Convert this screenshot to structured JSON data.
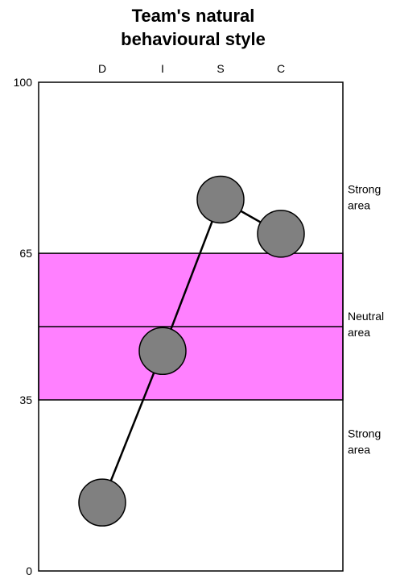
{
  "chart_data": {
    "type": "line",
    "title_lines": [
      "Team's natural",
      "behavioural style"
    ],
    "categories": [
      "D",
      "I",
      "S",
      "C"
    ],
    "values": [
      14,
      45,
      76,
      69
    ],
    "ylim": [
      0,
      100
    ],
    "y_ticks": [
      {
        "value": 100,
        "label": "100"
      },
      {
        "value": 65,
        "label": "65"
      },
      {
        "value": 35,
        "label": "35"
      },
      {
        "value": 0,
        "label": "0"
      }
    ],
    "bands": [
      {
        "from": 35,
        "to": 65,
        "color": "#ff80ff"
      }
    ],
    "reference_lines": [
      50
    ],
    "zone_labels": [
      {
        "value": 76,
        "lines": [
          "Strong",
          "area"
        ]
      },
      {
        "value": 50,
        "lines": [
          "Neutral",
          "area"
        ]
      },
      {
        "value": 26,
        "lines": [
          "Strong",
          "area"
        ]
      }
    ],
    "colors": {
      "marker_fill": "#808080",
      "marker_stroke": "#000000",
      "line": "#000000",
      "band": "#ff80ff",
      "frame": "#000000"
    }
  }
}
